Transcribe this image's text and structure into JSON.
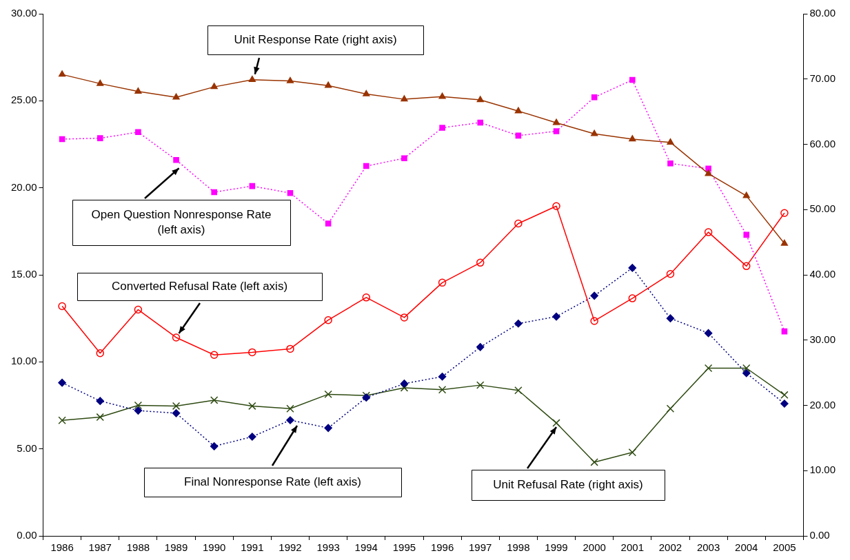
{
  "chart_data": {
    "type": "line",
    "categories": [
      "1986",
      "1987",
      "1988",
      "1989",
      "1990",
      "1991",
      "1992",
      "1993",
      "1994",
      "1995",
      "1996",
      "1997",
      "1998",
      "1999",
      "2000",
      "2001",
      "2002",
      "2003",
      "2004",
      "2005"
    ],
    "series": [
      {
        "name": "Unit Response Rate (right axis)",
        "color": "#993300",
        "axis": "y2",
        "marker": "triangle",
        "line_style": "solid",
        "values": [
          70.7,
          69.3,
          68.1,
          67.2,
          68.8,
          69.9,
          69.7,
          69.0,
          67.7,
          66.9,
          67.3,
          66.8,
          65.1,
          63.3,
          61.6,
          60.8,
          60.3,
          55.5,
          52.1,
          44.8
        ]
      },
      {
        "name": "Open Question Nonresponse Rate (left axis)",
        "color": "#ff00ff",
        "marker": "square",
        "line_style": "dotted",
        "values": [
          22.8,
          22.85,
          23.2,
          21.6,
          19.75,
          20.1,
          19.7,
          17.95,
          21.25,
          21.7,
          23.45,
          23.75,
          23.0,
          23.25,
          25.2,
          26.2,
          21.4,
          21.1,
          17.3,
          11.75
        ]
      },
      {
        "name": "Converted Refusal Rate (left axis)",
        "color": "#ff0000",
        "marker": "circle",
        "line_style": "solid",
        "values": [
          13.2,
          10.5,
          13.0,
          11.4,
          10.4,
          10.55,
          10.75,
          12.4,
          13.7,
          12.55,
          14.55,
          15.7,
          17.95,
          18.95,
          12.35,
          13.65,
          15.05,
          17.45,
          15.5,
          18.55
        ]
      },
      {
        "name": "Final Nonresponse Rate (left axis)",
        "color": "#000080",
        "marker": "diamond",
        "line_style": "dotted",
        "values": [
          8.8,
          7.75,
          7.2,
          7.05,
          5.15,
          5.7,
          6.65,
          6.2,
          7.95,
          8.75,
          9.15,
          10.85,
          12.2,
          12.6,
          13.8,
          15.4,
          12.5,
          11.65,
          9.35,
          7.6
        ]
      },
      {
        "name": "Unit Refusal Rate (right axis)",
        "color": "#2e4a12",
        "axis": "y2",
        "marker": "cross",
        "line_style": "solid",
        "values": [
          17.7,
          18.2,
          20.0,
          19.9,
          20.8,
          19.9,
          19.5,
          21.7,
          21.5,
          22.7,
          22.4,
          23.1,
          22.3,
          17.3,
          11.3,
          12.8,
          19.5,
          25.7,
          25.7,
          21.6
        ]
      }
    ],
    "ylim": [
      0,
      30
    ],
    "yticks": [
      {
        "value": 0,
        "label": "0.00"
      },
      {
        "value": 5,
        "label": "5.00"
      },
      {
        "value": 10,
        "label": "10.00"
      },
      {
        "value": 15,
        "label": "15.00"
      },
      {
        "value": 20,
        "label": "20.00"
      },
      {
        "value": 25,
        "label": "25.00"
      },
      {
        "value": 30,
        "label": "30.00"
      }
    ],
    "y2lim": [
      0,
      80
    ],
    "y2ticks": [
      {
        "value": 0,
        "label": "0.00"
      },
      {
        "value": 10,
        "label": "10.00"
      },
      {
        "value": 20,
        "label": "20.00"
      },
      {
        "value": 30,
        "label": "30.00"
      },
      {
        "value": 40,
        "label": "40.00"
      },
      {
        "value": 50,
        "label": "50.00"
      },
      {
        "value": 60,
        "label": "60.00"
      },
      {
        "value": 70,
        "label": "70.00"
      },
      {
        "value": 80,
        "label": "80.00"
      }
    ],
    "grid": false,
    "legend": false
  }
}
